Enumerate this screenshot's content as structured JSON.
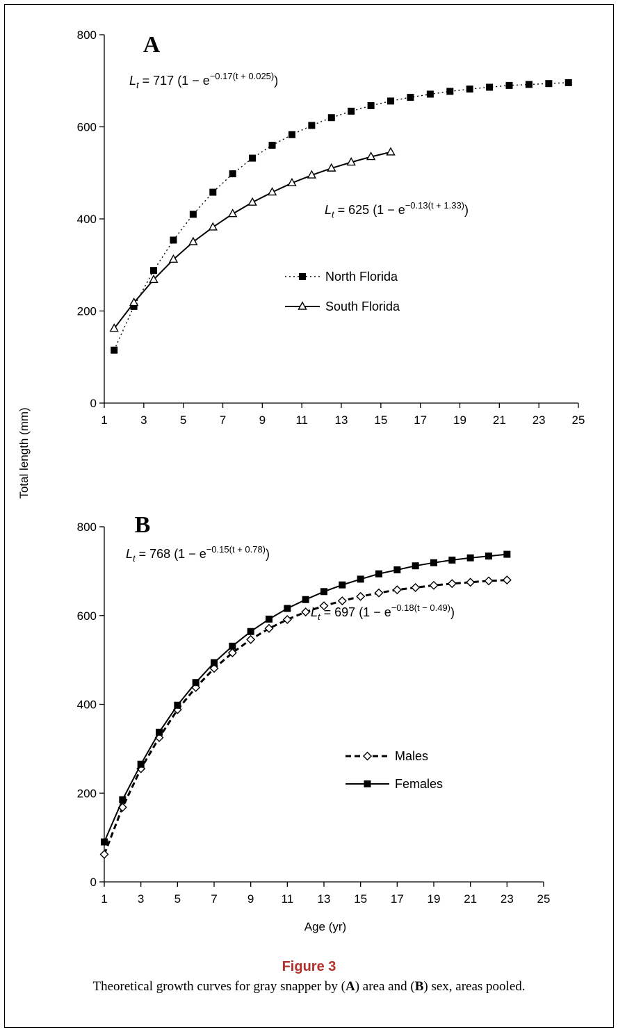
{
  "figure": {
    "title": "Figure 3",
    "caption": {
      "pre": "Theoretical growth curves for gray snapper by (",
      "a": "A",
      "mid": ") area and (",
      "b": "B",
      "post": ") sex, areas pooled."
    },
    "ylabel": "Total length (mm)",
    "xlabel": "Age (yr)"
  },
  "chart_data": [
    {
      "panel": "A",
      "type": "line",
      "xlim": [
        1,
        25
      ],
      "ylim": [
        0,
        800
      ],
      "x_ticks": [
        1,
        3,
        5,
        7,
        9,
        11,
        13,
        15,
        17,
        19,
        21,
        23,
        25
      ],
      "y_ticks": [
        0,
        200,
        400,
        600,
        800
      ],
      "grid": false,
      "legend_position": "center-right",
      "equations": [
        {
          "lhs": "L",
          "sub": "t",
          "mid": " = 717 (1 − e",
          "sup": "−0.17(t + 0.025)",
          "tail": ")"
        },
        {
          "lhs": "L",
          "sub": "t",
          "mid": " = 625 (1 − e",
          "sup": "−0.13(t + 1.33)",
          "tail": ")"
        }
      ],
      "series": [
        {
          "name": "North Florida",
          "style": "dotted",
          "marker": "filled-square",
          "color": "#000000",
          "x": [
            1.5,
            2.5,
            3.5,
            4.5,
            5.5,
            6.5,
            7.5,
            8.5,
            9.5,
            10.5,
            11.5,
            12.5,
            13.5,
            14.5,
            15.5,
            16.5,
            17.5,
            18.5,
            19.5,
            20.5,
            21.5,
            22.5,
            23.5,
            24.5
          ],
          "y": [
            115,
            210,
            288,
            354,
            410,
            458,
            498,
            532,
            560,
            583,
            603,
            620,
            634,
            646,
            656,
            664,
            671,
            677,
            682,
            686,
            690,
            692,
            694,
            696
          ]
        },
        {
          "name": "South Florida",
          "style": "solid",
          "marker": "open-triangle",
          "color": "#000000",
          "x": [
            1.5,
            2.5,
            3.5,
            4.5,
            5.5,
            6.5,
            7.5,
            8.5,
            9.5,
            10.5,
            11.5,
            12.5,
            13.5,
            14.5,
            15.5
          ],
          "y": [
            162,
            218,
            268,
            312,
            350,
            382,
            411,
            436,
            458,
            478,
            495,
            510,
            523,
            535,
            545
          ]
        }
      ]
    },
    {
      "panel": "B",
      "type": "line",
      "xlim": [
        1,
        25
      ],
      "ylim": [
        0,
        800
      ],
      "x_ticks": [
        1,
        3,
        5,
        7,
        9,
        11,
        13,
        15,
        17,
        19,
        21,
        23,
        25
      ],
      "y_ticks": [
        0,
        200,
        400,
        600,
        800
      ],
      "grid": false,
      "legend_position": "center-right",
      "equations": [
        {
          "lhs": "L",
          "sub": "t",
          "mid": " = 768 (1 − e",
          "sup": "−0.15(t + 0.78)",
          "tail": ")"
        },
        {
          "lhs": "L",
          "sub": "t",
          "mid": " = 697 (1 − e",
          "sup": "−0.18(t − 0.49)",
          "tail": ")"
        }
      ],
      "series": [
        {
          "name": "Males",
          "style": "dashed",
          "marker": "open-diamond",
          "color": "#000000",
          "x": [
            1,
            2,
            3,
            4,
            5,
            6,
            7,
            8,
            9,
            10,
            11,
            12,
            13,
            14,
            15,
            16,
            17,
            18,
            19,
            20,
            21,
            22,
            23
          ],
          "y": [
            62,
            168,
            255,
            325,
            388,
            438,
            481,
            516,
            546,
            571,
            591,
            608,
            622,
            633,
            643,
            651,
            658,
            663,
            668,
            672,
            675,
            678,
            680
          ]
        },
        {
          "name": "Females",
          "style": "solid",
          "marker": "filled-square",
          "color": "#000000",
          "x": [
            1,
            2,
            3,
            4,
            5,
            6,
            7,
            8,
            9,
            10,
            11,
            12,
            13,
            14,
            15,
            16,
            17,
            18,
            19,
            20,
            21,
            22,
            23
          ],
          "y": [
            90,
            185,
            265,
            337,
            398,
            449,
            494,
            531,
            564,
            592,
            616,
            636,
            654,
            669,
            682,
            694,
            703,
            712,
            719,
            725,
            730,
            734,
            738
          ]
        }
      ]
    }
  ]
}
